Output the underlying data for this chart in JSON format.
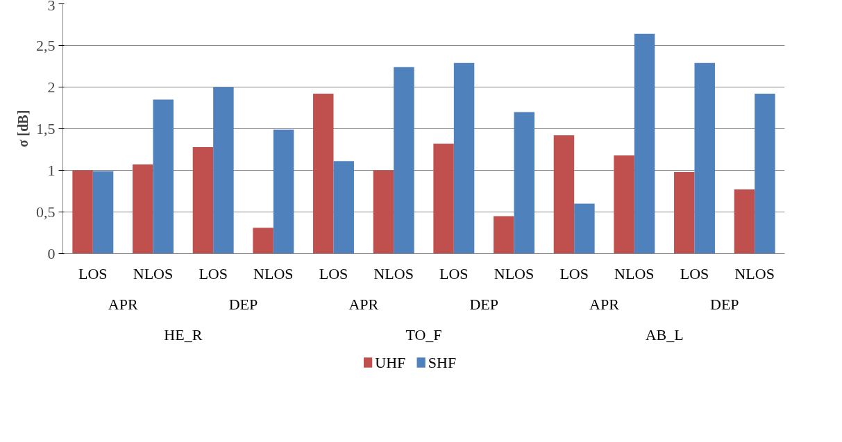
{
  "chart_data": {
    "type": "bar",
    "ylabel": "σ [dB]",
    "categories": [
      [
        "HE_R",
        "APR",
        "LOS"
      ],
      [
        null,
        null,
        "NLOS"
      ],
      [
        null,
        "DEP",
        "LOS"
      ],
      [
        null,
        null,
        "NLOS"
      ],
      [
        "TO_F",
        "APR",
        "LOS"
      ],
      [
        null,
        null,
        "NLOS"
      ],
      [
        null,
        "DEP",
        "LOS"
      ],
      [
        null,
        null,
        "NLOS"
      ],
      [
        "AB_L",
        "APR",
        "LOS"
      ],
      [
        null,
        null,
        "NLOS"
      ],
      [
        null,
        "DEP",
        "LOS"
      ],
      [
        null,
        null,
        "NLOS"
      ]
    ],
    "series": [
      {
        "name": "UHF",
        "color": "#c0504d",
        "values": [
          1.0,
          1.07,
          1.28,
          0.31,
          1.92,
          1.0,
          1.32,
          0.45,
          1.42,
          1.18,
          0.98,
          0.77
        ]
      },
      {
        "name": "SHF",
        "color": "#4f81bd",
        "values": [
          0.99,
          1.85,
          2.0,
          1.49,
          1.11,
          2.24,
          2.29,
          1.7,
          0.6,
          2.64,
          2.29,
          1.92
        ]
      }
    ],
    "ylim": [
      0,
      3
    ],
    "yticks": [
      0,
      {
        "value": 0.5,
        "label": "0,5"
      },
      1,
      {
        "value": 1.5,
        "label": "1,5"
      },
      2,
      {
        "value": 2.5,
        "label": "2,5"
      },
      3
    ],
    "grid": "y",
    "legend": "bottom"
  }
}
